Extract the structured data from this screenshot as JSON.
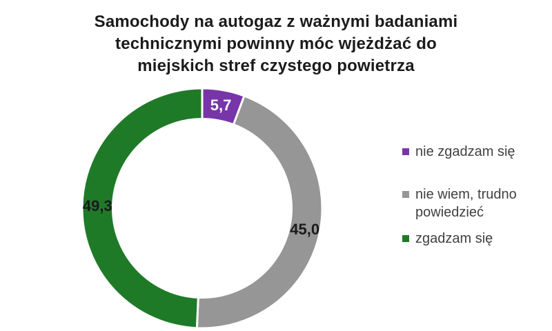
{
  "page": {
    "background_color": "#ffffff"
  },
  "title": {
    "text": "Samochody na autogaz z ważnymi badaniami technicznymi powinny móc wjeżdżać do miejskich stref czystego powietrza",
    "lines": [
      "Samochody na autogaz z ważnymi badaniami",
      "technicznymi powinny móc wjeżdżać do",
      "miejskich stref czystego powietrza"
    ]
  },
  "chart_data": {
    "type": "pie",
    "subtype": "donut",
    "title": "Samochody na autogaz z ważnymi badaniami technicznymi powinny móc wjeżdżać do miejskich stref czystego powietrza",
    "values_are": "percent",
    "total": 100,
    "start_angle_deg": 0,
    "direction": "clockwise",
    "hole_ratio": 0.75,
    "legend_position": "right",
    "segment_border_color": "#ffffff",
    "series": [
      {
        "name": "nie zgadzam się",
        "value": 5.7,
        "label": "5,7",
        "color": "#7835A8",
        "label_color": "#ffffff"
      },
      {
        "name": "nie wiem, trudno powiedzieć",
        "value": 45.0,
        "label": "45,0",
        "color": "#969696",
        "label_color": "#1a1a1a"
      },
      {
        "name": "zgadzam się",
        "value": 49.3,
        "label": "49,3",
        "color": "#1F7A28",
        "label_color": "#1a1a1a"
      }
    ]
  }
}
